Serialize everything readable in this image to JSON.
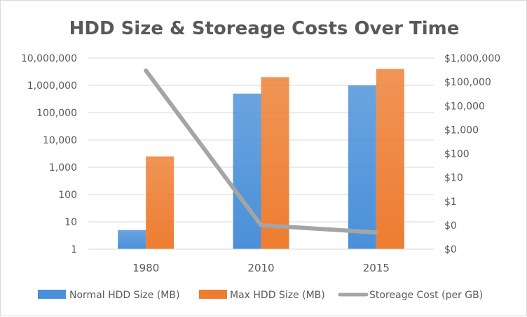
{
  "chart_data": {
    "type": "bar",
    "title": "HDD Size & Storeage Costs Over Time",
    "categories": [
      "1980",
      "2010",
      "2015"
    ],
    "series": [
      {
        "name": "Normal HDD Size (MB)",
        "kind": "bar",
        "axis": "left",
        "color": "#4a90d9",
        "values": [
          5,
          500000,
          1000000
        ]
      },
      {
        "name": "Max HDD Size (MB)",
        "kind": "bar",
        "axis": "left",
        "color": "#ed7d31",
        "values": [
          2500,
          2000000,
          4000000
        ]
      },
      {
        "name": "Storeage Cost (per GB)",
        "kind": "line",
        "axis": "right",
        "color": "#a5a5a5",
        "values": [
          300000,
          0.1,
          0.05
        ]
      }
    ],
    "y_left": {
      "scale": "log",
      "range": [
        1,
        10000000
      ],
      "tick_values": [
        1,
        10,
        100,
        1000,
        10000,
        100000,
        1000000,
        10000000
      ],
      "tick_labels": [
        "1",
        "10",
        "100",
        "1,000",
        "10,000",
        "100,000",
        "1,000,000",
        "10,000,000"
      ]
    },
    "y_right": {
      "scale": "log",
      "range": [
        0.01,
        1000000
      ],
      "tick_values": [
        0.01,
        0.1,
        1,
        10,
        100,
        1000,
        10000,
        100000,
        1000000
      ],
      "tick_labels": [
        "$0",
        "$0",
        "$1",
        "$10",
        "$100",
        "$1,000",
        "$10,000",
        "$100,000",
        "$1,000,000"
      ]
    },
    "grid": true,
    "legend_position": "bottom"
  }
}
